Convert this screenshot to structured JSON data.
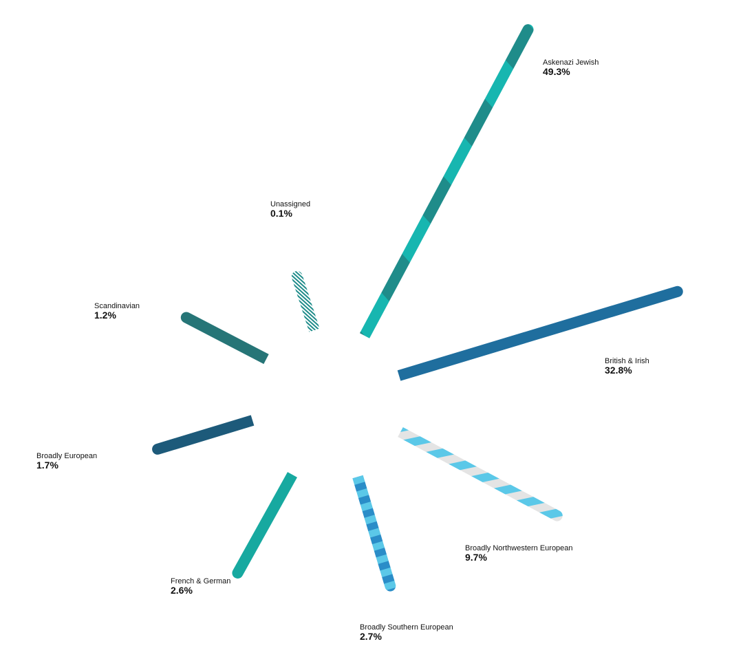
{
  "chart_data": {
    "type": "starburst",
    "categories": [
      "Askenazi Jewish",
      "British & Irish",
      "Broadly Northwestern European",
      "Broadly Southern European",
      "French & German",
      "Broadly European",
      "Scandinavian",
      "Unassigned"
    ],
    "values": [
      49.3,
      32.8,
      9.7,
      2.7,
      2.6,
      1.7,
      1.2,
      0.1
    ],
    "value_labels": [
      "49.3%",
      "32.8%",
      "9.7%",
      "2.7%",
      "2.6%",
      "1.7%",
      "1.2%",
      "0.1%"
    ],
    "colors": [
      "#1f8c8a",
      "#1f6e9e",
      "#5bc8e8",
      "#2a8dc8",
      "#17a9a0",
      "#1d5a7a",
      "#267577",
      "#ffffff"
    ],
    "stripe_colors": [
      "#17b6b0",
      null,
      "#e4e4e4",
      "#5bc8e8",
      null,
      null,
      null,
      "#1f8c8a"
    ]
  }
}
